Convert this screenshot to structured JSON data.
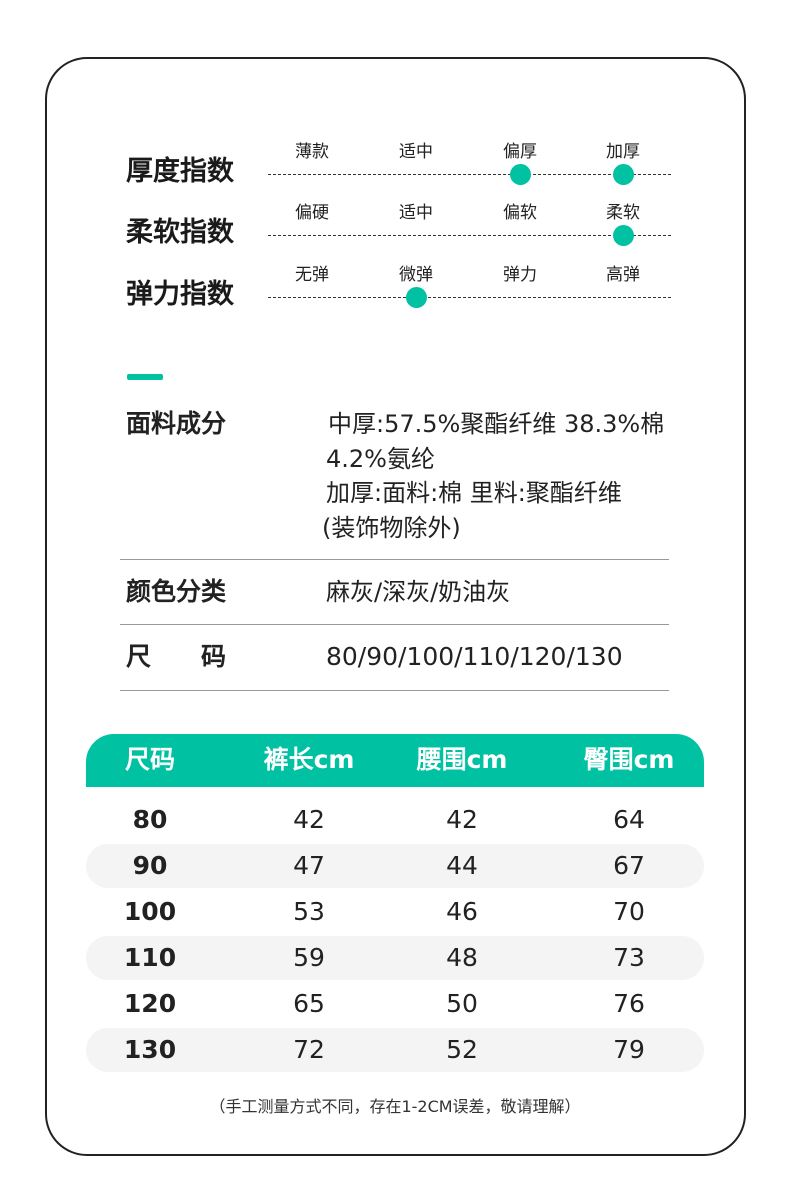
{
  "indices": [
    {
      "label": "厚度指数",
      "options": [
        "薄款",
        "适中",
        "偏厚",
        "加厚"
      ],
      "selected": [
        2,
        3
      ]
    },
    {
      "label": "柔软指数",
      "options": [
        "偏硬",
        "适中",
        "偏软",
        "柔软"
      ],
      "selected": [
        3
      ]
    },
    {
      "label": "弹力指数",
      "options": [
        "无弹",
        "微弹",
        "弹力",
        "高弹"
      ],
      "selected": [
        1
      ]
    }
  ],
  "accent": "#00c2a3",
  "fabric": {
    "label": "面料成分",
    "lines": [
      "中厚:57.5%聚酯纤维 38.3%棉",
      "4.2%氨纶",
      "加厚:面料:棉 里料:聚酯纤维",
      "(装饰物除外)"
    ]
  },
  "color": {
    "label": "颜色分类",
    "value": "麻灰/深灰/奶油灰"
  },
  "size": {
    "label": "尺　　码",
    "value": "80/90/100/110/120/130"
  },
  "table": {
    "headers": [
      "尺码",
      "裤长cm",
      "腰围cm",
      "臀围cm"
    ],
    "rows": [
      [
        "80",
        "42",
        "42",
        "64"
      ],
      [
        "90",
        "47",
        "44",
        "67"
      ],
      [
        "100",
        "53",
        "46",
        "70"
      ],
      [
        "110",
        "59",
        "48",
        "73"
      ],
      [
        "120",
        "65",
        "50",
        "76"
      ],
      [
        "130",
        "72",
        "52",
        "79"
      ]
    ]
  },
  "note": "（手工测量方式不同，存在1-2CM误差，敬请理解）"
}
